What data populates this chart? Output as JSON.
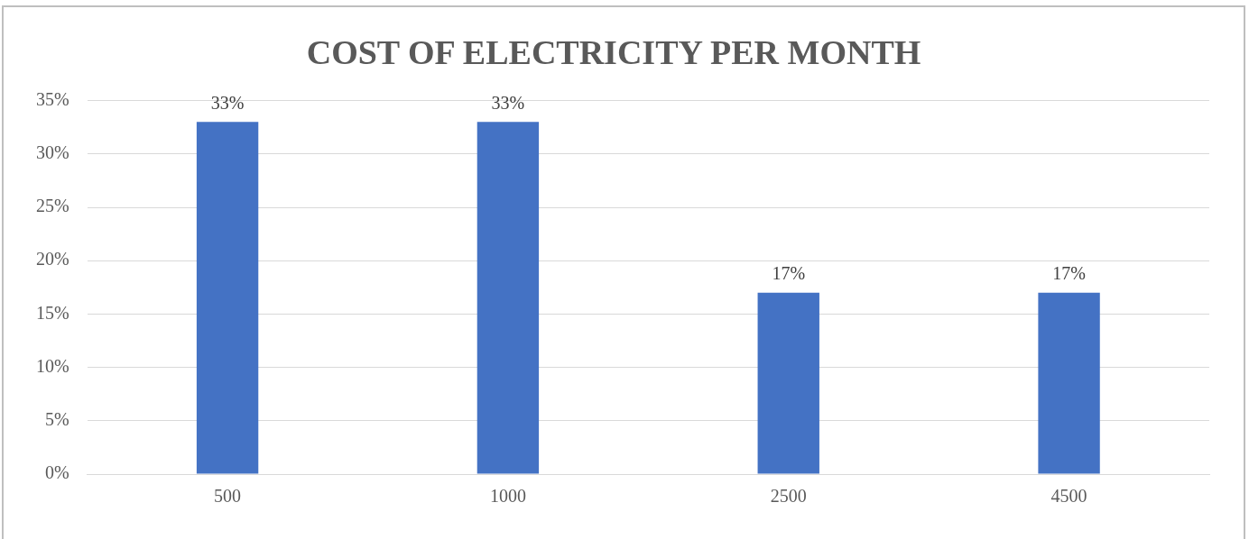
{
  "chart_data": {
    "type": "bar",
    "title": "COST OF ELECTRICITY PER MONTH",
    "categories": [
      "500",
      "1000",
      "2500",
      "4500"
    ],
    "values": [
      33,
      33,
      17,
      17
    ],
    "value_labels": [
      "33%",
      "33%",
      "17%",
      "17%"
    ],
    "color": "#4472c4",
    "ylim": [
      0,
      35
    ],
    "yticks": [
      {
        "value": 0,
        "label": "0%"
      },
      {
        "value": 5,
        "label": "5%"
      },
      {
        "value": 10,
        "label": "10%"
      },
      {
        "value": 15,
        "label": "15%"
      },
      {
        "value": 20,
        "label": "20%"
      },
      {
        "value": 25,
        "label": "25%"
      },
      {
        "value": 30,
        "label": "30%"
      },
      {
        "value": 35,
        "label": "35%"
      }
    ],
    "grid": "y",
    "legend": false
  }
}
